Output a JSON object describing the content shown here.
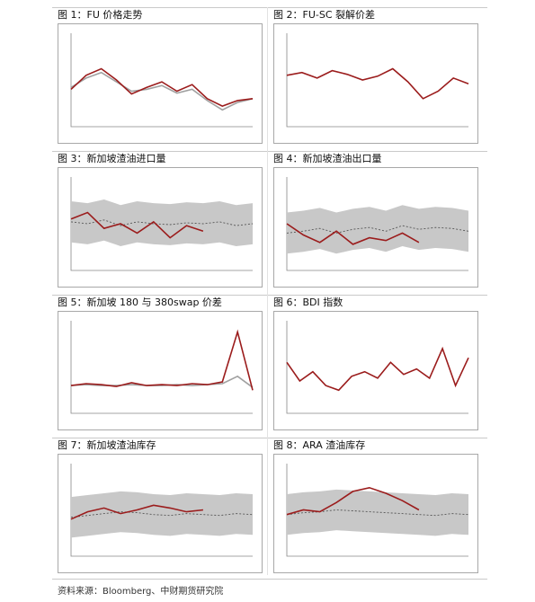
{
  "page": {
    "source": "资料来源：Bloomberg、中财期货研究院"
  },
  "chart_data": [
    {
      "id": "fig1",
      "title": "图 1：FU 价格走势",
      "type": "line",
      "series": [
        {
          "name": "",
          "color": "#9b1c1c",
          "values": [
            40,
            55,
            62,
            50,
            35,
            42,
            48,
            38,
            45,
            30,
            22,
            28,
            30
          ]
        },
        {
          "name": "",
          "color": "#a0a0a0",
          "values": [
            42,
            52,
            58,
            48,
            38,
            40,
            44,
            36,
            40,
            28,
            18,
            26,
            30
          ]
        }
      ]
    },
    {
      "id": "fig2",
      "title": "图 2：FU-SC 裂解价差",
      "type": "line",
      "series": [
        {
          "name": "",
          "color": "#9b1c1c",
          "values": [
            55,
            58,
            52,
            60,
            56,
            50,
            54,
            62,
            48,
            30,
            38,
            52,
            46
          ]
        }
      ]
    },
    {
      "id": "fig3",
      "title": "图 3：新加坡渣油进口量",
      "type": "area",
      "series": [
        {
          "name": "",
          "color": "#9b1c1c",
          "values": [
            55,
            62,
            45,
            50,
            40,
            52,
            35,
            48,
            42
          ]
        },
        {
          "name": "",
          "color": "#555555",
          "values": [
            52,
            50,
            54,
            48,
            52,
            50,
            49,
            51,
            50,
            52,
            48,
            50
          ]
        }
      ]
    },
    {
      "id": "fig4",
      "title": "图 4：新加坡渣油出口量",
      "type": "area",
      "series": [
        {
          "name": "",
          "color": "#9b1c1c",
          "values": [
            50,
            38,
            30,
            42,
            28,
            35,
            32,
            40,
            30
          ]
        },
        {
          "name": "",
          "color": "#555555",
          "values": [
            40,
            42,
            45,
            40,
            44,
            46,
            42,
            48,
            44,
            46,
            45,
            42
          ]
        }
      ]
    },
    {
      "id": "fig5",
      "title": "图 5：新加坡 180 与 380swap 价差",
      "type": "line",
      "series": [
        {
          "name": "",
          "color": "#9b1c1c",
          "values": [
            30,
            32,
            31,
            29,
            33,
            30,
            31,
            30,
            32,
            31,
            34,
            88,
            25
          ]
        },
        {
          "name": "",
          "color": "#a0a0a0",
          "values": [
            30,
            31,
            30,
            30,
            31,
            30,
            30,
            31,
            30,
            31,
            32,
            40,
            28
          ]
        }
      ]
    },
    {
      "id": "fig6",
      "title": "图 6：BDI 指数",
      "type": "line",
      "series": [
        {
          "name": "",
          "color": "#9b1c1c",
          "values": [
            55,
            35,
            45,
            30,
            25,
            40,
            45,
            38,
            55,
            42,
            48,
            38,
            70,
            30,
            60
          ]
        }
      ]
    },
    {
      "id": "fig7",
      "title": "图 7：新加坡渣油库存",
      "type": "area",
      "series": [
        {
          "name": "",
          "color": "#9b1c1c",
          "values": [
            40,
            48,
            52,
            46,
            50,
            55,
            52,
            48,
            50
          ]
        },
        {
          "name": "",
          "color": "#555555",
          "values": [
            42,
            44,
            46,
            48,
            47,
            45,
            44,
            46,
            45,
            44,
            46,
            45
          ]
        }
      ]
    },
    {
      "id": "fig8",
      "title": "图 8：ARA 渣油库存",
      "type": "area",
      "series": [
        {
          "name": "",
          "color": "#9b1c1c",
          "values": [
            45,
            50,
            48,
            58,
            70,
            74,
            68,
            60,
            50
          ]
        },
        {
          "name": "",
          "color": "#555555",
          "values": [
            45,
            47,
            48,
            50,
            49,
            48,
            47,
            46,
            45,
            44,
            46,
            45
          ]
        }
      ]
    }
  ]
}
